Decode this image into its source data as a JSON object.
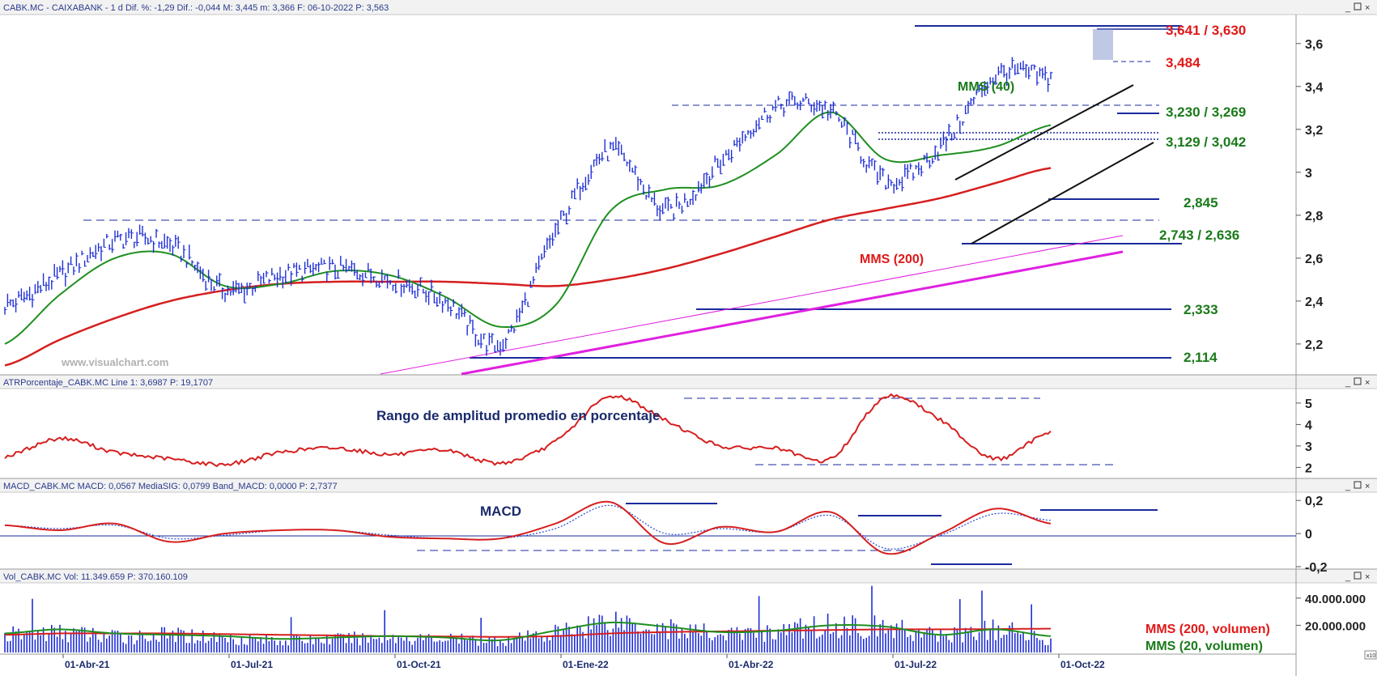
{
  "colors": {
    "price": "#1f2fd6",
    "mms200": "#d61f1f",
    "mms40": "#1f8f1f",
    "levels_blue": "#1a2a9c",
    "trend_magenta": "#e020e0",
    "atr": "#d61f1f",
    "macd": "#d61f1f",
    "signal": "#2a4ad0",
    "volume": "#1f2fd6",
    "label_red": "#e01818",
    "label_green": "#1a7a1a",
    "label_navy": "#1a2a6c"
  },
  "panels": {
    "price": {
      "header": "CABK.MC - CAIXABANK -  1 d  Dif. %: -1,29  Dif.: -0,044  M: 3,445  m: 3,366  F: 06-10-2022  P: 3,563",
      "watermark": "www.visualchart.com",
      "ylim": [
        2.06,
        3.72
      ],
      "yticks": [
        "3,6",
        "3,4",
        "3,2",
        "3",
        "2,8",
        "2,6",
        "2,4",
        "2,2"
      ],
      "ytick_values": [
        3.6,
        3.4,
        3.2,
        3.0,
        2.8,
        2.6,
        2.4,
        2.2
      ],
      "labels": {
        "mms40": "MMS (40)",
        "mms200": "MMS (200)",
        "lvl_3641": "3,641 / 3,630",
        "lvl_3484": "3,484",
        "lvl_3230": "3,230 / 3,269",
        "lvl_3129": "3,129 / 3,042",
        "lvl_2845": "2,845",
        "lvl_2743": "2,743 / 2,636",
        "lvl_2333": "2,333",
        "lvl_2114": "2,114"
      }
    },
    "atr": {
      "header": "ATRPorcentaje_CABK.MC  Line 1: 3,6987  P: 19,1707",
      "title": "Rango de amplitud promedio en porcentaje",
      "ylim": [
        1.6,
        5.6
      ],
      "yticks": [
        "5",
        "4",
        "3",
        "2"
      ],
      "ytick_values": [
        5,
        4,
        3,
        2
      ]
    },
    "macd": {
      "header": "MACD_CABK.MC  MACD: 0,0567  MediaSIG: 0,0799  Band_MACD: 0,0000  P: 2,7377",
      "title": "MACD",
      "ylim": [
        -0.2,
        0.24
      ],
      "yticks": [
        "0,2",
        "0",
        "-0,2"
      ],
      "ytick_values": [
        0.2,
        0.0,
        -0.2
      ]
    },
    "volume": {
      "header": "Vol_CABK.MC  Vol: 11.349.659  P: 370.160.109",
      "ylim": [
        0,
        50000000
      ],
      "yticks": [
        "40.000.000",
        "20.000.000"
      ],
      "ytick_values": [
        40000000,
        20000000
      ],
      "labels": {
        "mms200": "MMS (200, volumen)",
        "mms20": "MMS (20, volumen)"
      },
      "scale_badge": "x10"
    }
  },
  "x_axis": {
    "labels": [
      "01-Abr-21",
      "01-Jul-21",
      "01-Oct-21",
      "01-Ene-22",
      "01-Abr-22",
      "01-Jul-22",
      "01-Oct-22"
    ]
  },
  "chart_data": [
    {
      "type": "line",
      "title": "",
      "x": [
        "2021-03",
        "2021-04",
        "2021-05",
        "2021-06",
        "2021-07",
        "2021-08",
        "2021-09",
        "2021-10",
        "2021-11",
        "2021-12",
        "2022-01",
        "2022-02",
        "2022-03",
        "2022-04",
        "2022-05",
        "2022-06",
        "2022-07",
        "2022-08",
        "2022-09",
        "2022-10"
      ],
      "series": [
        {
          "name": "price",
          "values": [
            2.38,
            2.52,
            2.68,
            2.66,
            2.45,
            2.52,
            2.55,
            2.5,
            2.4,
            2.2,
            2.72,
            3.1,
            2.82,
            3.05,
            3.3,
            3.28,
            2.96,
            3.12,
            3.45,
            3.44
          ]
        },
        {
          "name": "MMS (40)",
          "values": [
            2.2,
            2.43,
            2.6,
            2.62,
            2.47,
            2.48,
            2.54,
            2.52,
            2.42,
            2.28,
            2.38,
            2.82,
            2.92,
            2.94,
            3.08,
            3.28,
            3.06,
            3.08,
            3.12,
            3.22
          ]
        },
        {
          "name": "MMS (200)",
          "values": [
            2.1,
            2.22,
            2.32,
            2.4,
            2.45,
            2.48,
            2.49,
            2.49,
            2.49,
            2.48,
            2.47,
            2.5,
            2.55,
            2.62,
            2.7,
            2.78,
            2.83,
            2.88,
            2.95,
            3.02
          ]
        }
      ],
      "levels": [
        3.641,
        3.63,
        3.484,
        3.269,
        3.23,
        3.129,
        3.042,
        2.845,
        2.743,
        2.636,
        2.333,
        2.114
      ],
      "ylim": [
        2.06,
        3.72
      ]
    },
    {
      "type": "line",
      "title": "Rango de amplitud promedio en porcentaje",
      "x": [
        "2021-03",
        "2021-04",
        "2021-05",
        "2021-06",
        "2021-07",
        "2021-08",
        "2021-09",
        "2021-10",
        "2021-11",
        "2021-12",
        "2022-01",
        "2022-02",
        "2022-03",
        "2022-04",
        "2022-05",
        "2022-06",
        "2022-07",
        "2022-08",
        "2022-09",
        "2022-10"
      ],
      "series": [
        {
          "name": "ATR %",
          "values": [
            2.5,
            3.35,
            2.7,
            2.4,
            2.15,
            2.7,
            2.9,
            2.6,
            2.8,
            2.2,
            3.2,
            5.3,
            4.2,
            3.0,
            2.9,
            2.4,
            5.3,
            4.2,
            2.4,
            3.7
          ]
        }
      ],
      "ylim": [
        1.6,
        5.6
      ]
    },
    {
      "type": "line",
      "title": "MACD",
      "x": [
        "2021-03",
        "2021-04",
        "2021-05",
        "2021-06",
        "2021-07",
        "2021-08",
        "2021-09",
        "2021-10",
        "2021-11",
        "2021-12",
        "2022-01",
        "2022-02",
        "2022-03",
        "2022-04",
        "2022-05",
        "2022-06",
        "2022-07",
        "2022-08",
        "2022-09",
        "2022-10"
      ],
      "series": [
        {
          "name": "MACD",
          "values": [
            0.05,
            0.02,
            0.06,
            -0.05,
            0.0,
            0.02,
            0.02,
            -0.02,
            -0.03,
            -0.03,
            0.06,
            0.19,
            -0.06,
            0.04,
            0.01,
            0.13,
            -0.12,
            0.0,
            0.15,
            0.06
          ]
        },
        {
          "name": "MediaSIG",
          "values": [
            0.05,
            0.03,
            0.05,
            -0.03,
            -0.01,
            0.02,
            0.02,
            -0.01,
            -0.03,
            -0.03,
            0.03,
            0.17,
            0.0,
            0.03,
            0.01,
            0.11,
            -0.09,
            -0.01,
            0.12,
            0.08
          ]
        }
      ],
      "ylim": [
        -0.2,
        0.24
      ]
    },
    {
      "type": "bar",
      "title": "",
      "x": [
        "2021-03",
        "2021-04",
        "2021-05",
        "2021-06",
        "2021-07",
        "2021-08",
        "2021-09",
        "2021-10",
        "2021-11",
        "2021-12",
        "2022-01",
        "2022-02",
        "2022-03",
        "2022-04",
        "2022-05",
        "2022-06",
        "2022-07",
        "2022-08",
        "2022-09",
        "2022-10"
      ],
      "series": [
        {
          "name": "Vol",
          "values": [
            14000000,
            16000000,
            13000000,
            14000000,
            12000000,
            10000000,
            11000000,
            12000000,
            11000000,
            10000000,
            16000000,
            26000000,
            20000000,
            15000000,
            17000000,
            22000000,
            20000000,
            14000000,
            18000000,
            11349659
          ]
        },
        {
          "name": "MMS (200, volumen)",
          "values": [
            13000000,
            14000000,
            14000000,
            14000000,
            13500000,
            13000000,
            12500000,
            12000000,
            11800000,
            11500000,
            12000000,
            14000000,
            15000000,
            15500000,
            16000000,
            16500000,
            17000000,
            17000000,
            17200000,
            17500000
          ]
        },
        {
          "name": "MMS (20, volumen)",
          "values": [
            14000000,
            17000000,
            14000000,
            13000000,
            12000000,
            10000000,
            11000000,
            12000000,
            11000000,
            9000000,
            16000000,
            22000000,
            19000000,
            15000000,
            16000000,
            20000000,
            19000000,
            13000000,
            17000000,
            12000000
          ]
        }
      ],
      "ylim": [
        0,
        50000000
      ]
    }
  ]
}
